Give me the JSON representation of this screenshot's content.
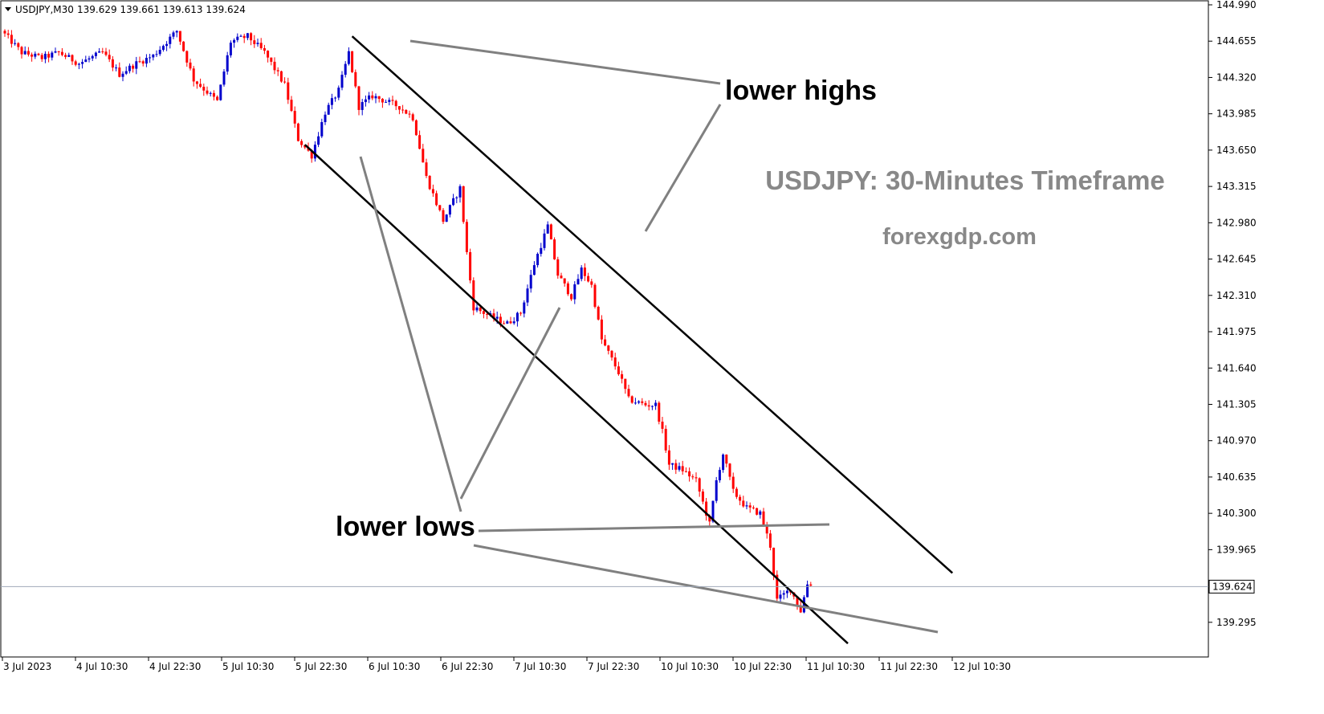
{
  "chart_data": {
    "type": "candlestick",
    "symbol": "USDJPY,M30",
    "header": {
      "label": "USDJPY,M30",
      "ohlc": "139.629 139.661 139.613 139.624"
    },
    "ylim": [
      139.15,
      145.0
    ],
    "y_ticks": [
      "144.990",
      "144.655",
      "144.320",
      "143.985",
      "143.650",
      "143.315",
      "142.980",
      "142.645",
      "142.310",
      "141.975",
      "141.640",
      "141.305",
      "140.970",
      "140.635",
      "140.300",
      "139.965",
      "139.295"
    ],
    "x_ticks": [
      "3 Jul 2023",
      "4 Jul 10:30",
      "4 Jul 22:30",
      "5 Jul 10:30",
      "5 Jul 22:30",
      "6 Jul 10:30",
      "6 Jul 22:30",
      "7 Jul 10:30",
      "7 Jul 22:30",
      "10 Jul 10:30",
      "10 Jul 22:30",
      "11 Jul 10:30",
      "11 Jul 22:30",
      "12 Jul 10:30"
    ],
    "current_price": {
      "value": 139.624,
      "label": "139.624"
    },
    "price_path_keypoints": [
      {
        "bar": 0,
        "price": 144.75
      },
      {
        "bar": 6,
        "price": 144.55
      },
      {
        "bar": 12,
        "price": 144.5
      },
      {
        "bar": 17,
        "price": 144.55
      },
      {
        "bar": 23,
        "price": 144.45
      },
      {
        "bar": 30,
        "price": 144.55
      },
      {
        "bar": 35,
        "price": 144.35
      },
      {
        "bar": 40,
        "price": 144.45
      },
      {
        "bar": 45,
        "price": 144.52
      },
      {
        "bar": 52,
        "price": 144.75
      },
      {
        "bar": 57,
        "price": 144.3
      },
      {
        "bar": 64,
        "price": 144.1
      },
      {
        "bar": 68,
        "price": 144.65
      },
      {
        "bar": 73,
        "price": 144.7
      },
      {
        "bar": 78,
        "price": 144.55
      },
      {
        "bar": 84,
        "price": 144.25
      },
      {
        "bar": 88,
        "price": 143.75
      },
      {
        "bar": 92,
        "price": 143.6
      },
      {
        "bar": 96,
        "price": 144.0
      },
      {
        "bar": 100,
        "price": 144.2
      },
      {
        "bar": 103,
        "price": 144.55
      },
      {
        "bar": 106,
        "price": 144.05
      },
      {
        "bar": 110,
        "price": 144.15
      },
      {
        "bar": 114,
        "price": 144.1
      },
      {
        "bar": 118,
        "price": 144.05
      },
      {
        "bar": 122,
        "price": 143.95
      },
      {
        "bar": 126,
        "price": 143.4
      },
      {
        "bar": 131,
        "price": 143.0
      },
      {
        "bar": 136,
        "price": 143.3
      },
      {
        "bar": 138,
        "price": 142.7
      },
      {
        "bar": 140,
        "price": 142.2
      },
      {
        "bar": 146,
        "price": 142.1
      },
      {
        "bar": 150,
        "price": 142.05
      },
      {
        "bar": 154,
        "price": 142.15
      },
      {
        "bar": 158,
        "price": 142.6
      },
      {
        "bar": 162,
        "price": 142.95
      },
      {
        "bar": 165,
        "price": 142.5
      },
      {
        "bar": 169,
        "price": 142.3
      },
      {
        "bar": 172,
        "price": 142.55
      },
      {
        "bar": 175,
        "price": 142.4
      },
      {
        "bar": 178,
        "price": 141.9
      },
      {
        "bar": 183,
        "price": 141.6
      },
      {
        "bar": 186,
        "price": 141.35
      },
      {
        "bar": 191,
        "price": 141.3
      },
      {
        "bar": 194,
        "price": 141.3
      },
      {
        "bar": 196,
        "price": 141.05
      },
      {
        "bar": 198,
        "price": 140.75
      },
      {
        "bar": 202,
        "price": 140.7
      },
      {
        "bar": 206,
        "price": 140.6
      },
      {
        "bar": 210,
        "price": 140.2
      },
      {
        "bar": 212,
        "price": 140.6
      },
      {
        "bar": 214,
        "price": 140.85
      },
      {
        "bar": 217,
        "price": 140.5
      },
      {
        "bar": 221,
        "price": 140.35
      },
      {
        "bar": 225,
        "price": 140.3
      },
      {
        "bar": 228,
        "price": 140.0
      },
      {
        "bar": 230,
        "price": 139.5
      },
      {
        "bar": 234,
        "price": 139.6
      },
      {
        "bar": 237,
        "price": 139.4
      },
      {
        "bar": 239,
        "price": 139.65
      }
    ],
    "channel_lines": [
      {
        "name": "upper",
        "from": {
          "bar": 103,
          "price": 144.7
        },
        "to": {
          "bar": 281,
          "price": 139.75
        }
      },
      {
        "name": "lower",
        "from": {
          "bar": 89,
          "price": 143.7
        },
        "to": {
          "bar": 250,
          "price": 139.1
        }
      }
    ],
    "annotations": [
      {
        "text": "lower highs"
      },
      {
        "text": "lower lows"
      }
    ],
    "watermark": {
      "line1": "USDJPY: 30-Minutes Timeframe",
      "line2": "forexgdp.com"
    },
    "colors": {
      "bull": "#0000cc",
      "bear": "#ff0000",
      "channel": "#000000",
      "pointer": "#808080",
      "current_price_line": "#a0aab8",
      "watermark": "#888888"
    }
  }
}
